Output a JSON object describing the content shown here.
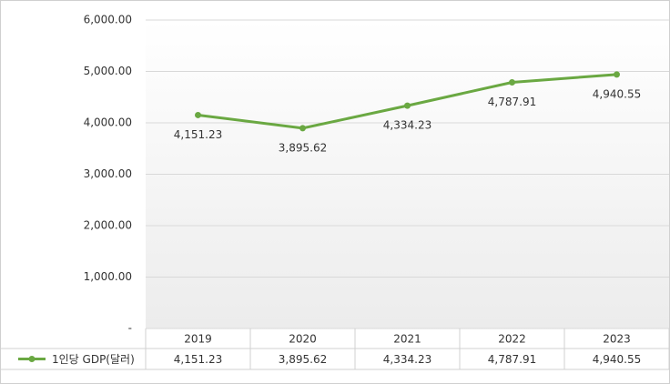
{
  "chart_data": {
    "type": "line",
    "categories": [
      "2019",
      "2020",
      "2021",
      "2022",
      "2023"
    ],
    "series": [
      {
        "name": "1인당 GDP(달러)",
        "color": "#6aa842",
        "values": [
          4151.23,
          3895.62,
          4334.23,
          4787.91,
          4940.55
        ],
        "value_labels": [
          "4,151.23",
          "3,895.62",
          "4,334.23",
          "4,787.91",
          "4,940.55"
        ]
      }
    ],
    "ylim": [
      0,
      6000
    ],
    "yticks": [
      {
        "value": 0,
        "label": "-"
      },
      {
        "value": 1000,
        "label": "1,000.00"
      },
      {
        "value": 2000,
        "label": "2,000.00"
      },
      {
        "value": 3000,
        "label": "3,000.00"
      },
      {
        "value": 4000,
        "label": "4,000.00"
      },
      {
        "value": 5000,
        "label": "5,000.00"
      },
      {
        "value": 6000,
        "label": "6,000.00"
      }
    ],
    "grid": true
  }
}
